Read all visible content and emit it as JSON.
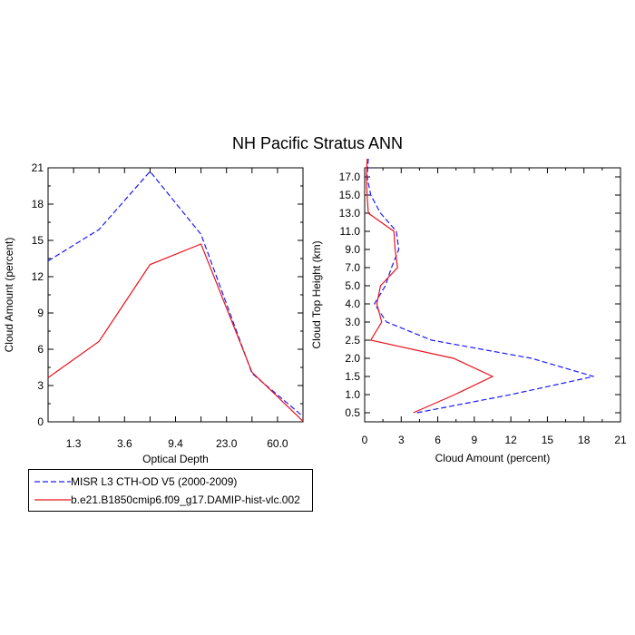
{
  "title": "NH Pacific Stratus ANN",
  "colors": {
    "obs": "#1a1aff",
    "model": "#e8141e"
  },
  "legend": {
    "obs_label": "MISR L3 CTH-OD V5 (2000-2009)",
    "model_label": "b.e21.B1850cmip6.f09_g17.DAMIP-hist-vlc.002"
  },
  "chart_data": [
    {
      "type": "line",
      "xlabel": "Optical Depth",
      "ylabel": "Cloud Amount (percent)",
      "ylim": [
        0,
        21
      ],
      "yticks": [
        "0",
        "3",
        "6",
        "9",
        "12",
        "15",
        "18",
        "21"
      ],
      "xtick_labels": [
        "1.3",
        "3.6",
        "9.4",
        "23.0",
        "60.0"
      ],
      "x": [
        0,
        1,
        2,
        3,
        4,
        5
      ],
      "series": [
        {
          "name": "MISR L3 CTH-OD V5 (2000-2009)",
          "style": "dashed",
          "values": [
            13.3,
            15.9,
            20.7,
            15.5,
            4.0,
            0.45
          ]
        },
        {
          "name": "b.e21.B1850cmip6.f09_g17.DAMIP-hist-vlc.002",
          "style": "solid",
          "values": [
            3.65,
            6.65,
            13.0,
            14.7,
            4.1,
            0.05
          ]
        }
      ]
    },
    {
      "type": "line",
      "xlabel": "Cloud Amount (percent)",
      "ylabel": "Cloud Top Height (km)",
      "xlim": [
        0,
        21
      ],
      "xticks": [
        "0",
        "3",
        "6",
        "9",
        "12",
        "15",
        "18",
        "21"
      ],
      "ytick_labels": [
        "0.5",
        "1.0",
        "1.5",
        "2.0",
        "2.5",
        "3.0",
        "4.0",
        "5.0",
        "7.0",
        "9.0",
        "11.0",
        "13.0",
        "15.0",
        "17.0"
      ],
      "levels": [
        0,
        1,
        2,
        3,
        4,
        5,
        6,
        7,
        8,
        9,
        10,
        11,
        12,
        13,
        14
      ],
      "series": [
        {
          "name": "MISR L3 CTH-OD V5 (2000-2009)",
          "style": "dashed",
          "values": [
            4.3,
            12.0,
            18.8,
            13.7,
            5.5,
            1.8,
            0.8,
            1.7,
            2.2,
            2.8,
            2.6,
            1.3,
            0.5,
            0.2,
            0.3
          ]
        },
        {
          "name": "b.e21.B1850cmip6.f09_g17.DAMIP-hist-vlc.002",
          "style": "solid",
          "values": [
            4.0,
            7.4,
            10.5,
            7.3,
            0.5,
            1.4,
            1.0,
            1.3,
            2.7,
            2.5,
            2.4,
            0.3,
            0.2,
            0.15,
            0.2
          ]
        }
      ]
    }
  ]
}
